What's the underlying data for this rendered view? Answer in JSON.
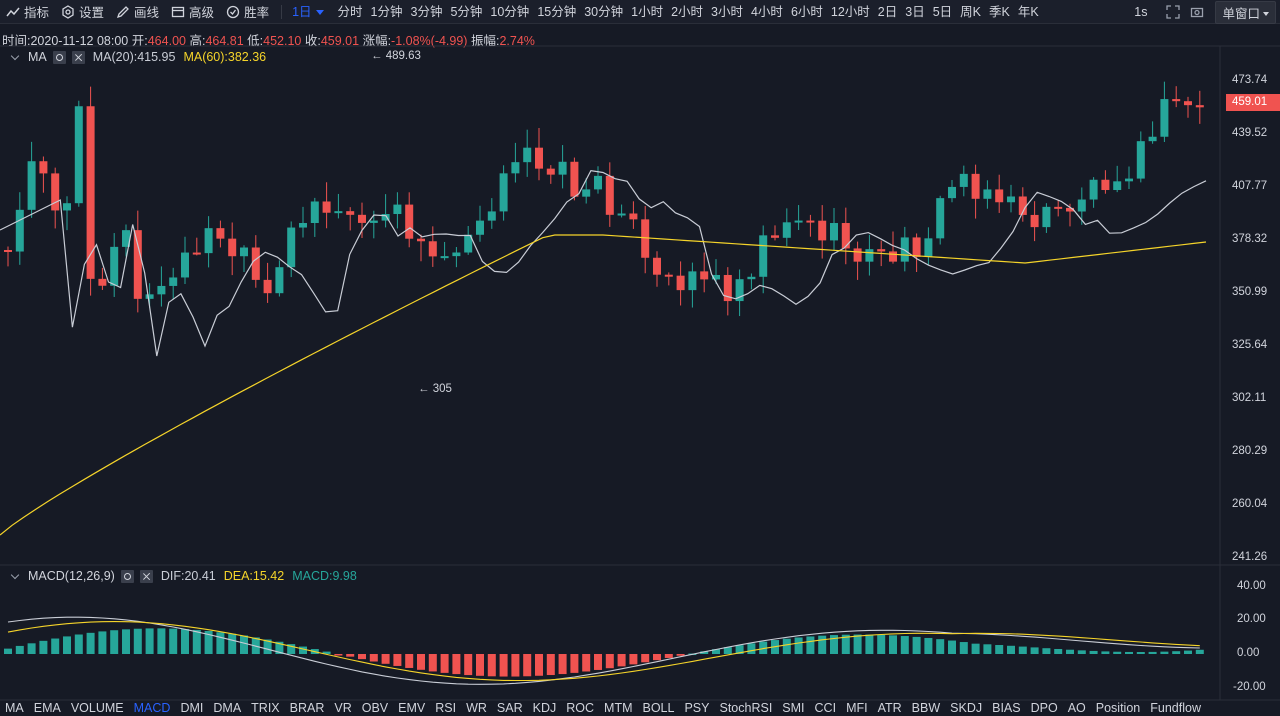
{
  "toolbar": {
    "tools": [
      {
        "label": "指标",
        "icon": "indicator-icon"
      },
      {
        "label": "设置",
        "icon": "settings-icon"
      },
      {
        "label": "画线",
        "icon": "pencil-icon"
      },
      {
        "label": "高级",
        "icon": "advanced-chart-icon"
      },
      {
        "label": "胜率",
        "icon": "winrate-icon"
      }
    ],
    "active_interval": "1日",
    "intervals": [
      "分时",
      "1分钟",
      "3分钟",
      "5分钟",
      "10分钟",
      "15分钟",
      "30分钟",
      "1小时",
      "2小时",
      "3小时",
      "4小时",
      "6小时",
      "12小时",
      "2日",
      "3日",
      "5日",
      "周K",
      "季K",
      "年K"
    ],
    "right_interval": "1s",
    "window_mode": "单窗口"
  },
  "info": {
    "time_label": "时间:",
    "time": "2020-11-12 08:00",
    "open_label": "开:",
    "open": "464.00",
    "high_label": "高:",
    "high": "464.81",
    "low_label": "低:",
    "low": "452.10",
    "close_label": "收:",
    "close": "459.01",
    "change_label": "涨幅:",
    "change": "-1.08%(-4.99)",
    "amp_label": "振幅:",
    "amp": "2.74%"
  },
  "ma_legend": {
    "name": "MA",
    "ma20": "MA(20):415.95",
    "ma60": "MA(60):382.36"
  },
  "macd_legend": {
    "name": "MACD(12,26,9)",
    "dif": "DIF:20.41",
    "dea": "DEA:15.42",
    "macd": "MACD:9.98"
  },
  "price_axis": [
    "473.74",
    "439.52",
    "407.77",
    "378.32",
    "350.99",
    "325.64",
    "302.11",
    "280.29",
    "260.04",
    "241.26"
  ],
  "macd_axis": [
    "40.00",
    "20.00",
    "0.00",
    "-20.00"
  ],
  "current_price": "459.01",
  "annotations": {
    "high": "489.63",
    "low": "305"
  },
  "indicators": [
    "MA",
    "EMA",
    "VOLUME",
    "MACD",
    "DMI",
    "DMA",
    "TRIX",
    "BRAR",
    "VR",
    "OBV",
    "EMV",
    "RSI",
    "WR",
    "SAR",
    "KDJ",
    "ROC",
    "MTM",
    "BOLL",
    "PSY",
    "StochRSI",
    "SMI",
    "CCI",
    "MFI",
    "ATR",
    "BBW",
    "SKDJ",
    "BIAS",
    "DPO",
    "AO",
    "Position",
    "Fundflow"
  ],
  "active_indicator": "MACD",
  "colors": {
    "up": "#26a69a",
    "down": "#f05350",
    "ma20": "#c9cdd6",
    "ma60": "#f5d42a",
    "active": "#2962ff",
    "bg": "#161a25"
  }
}
